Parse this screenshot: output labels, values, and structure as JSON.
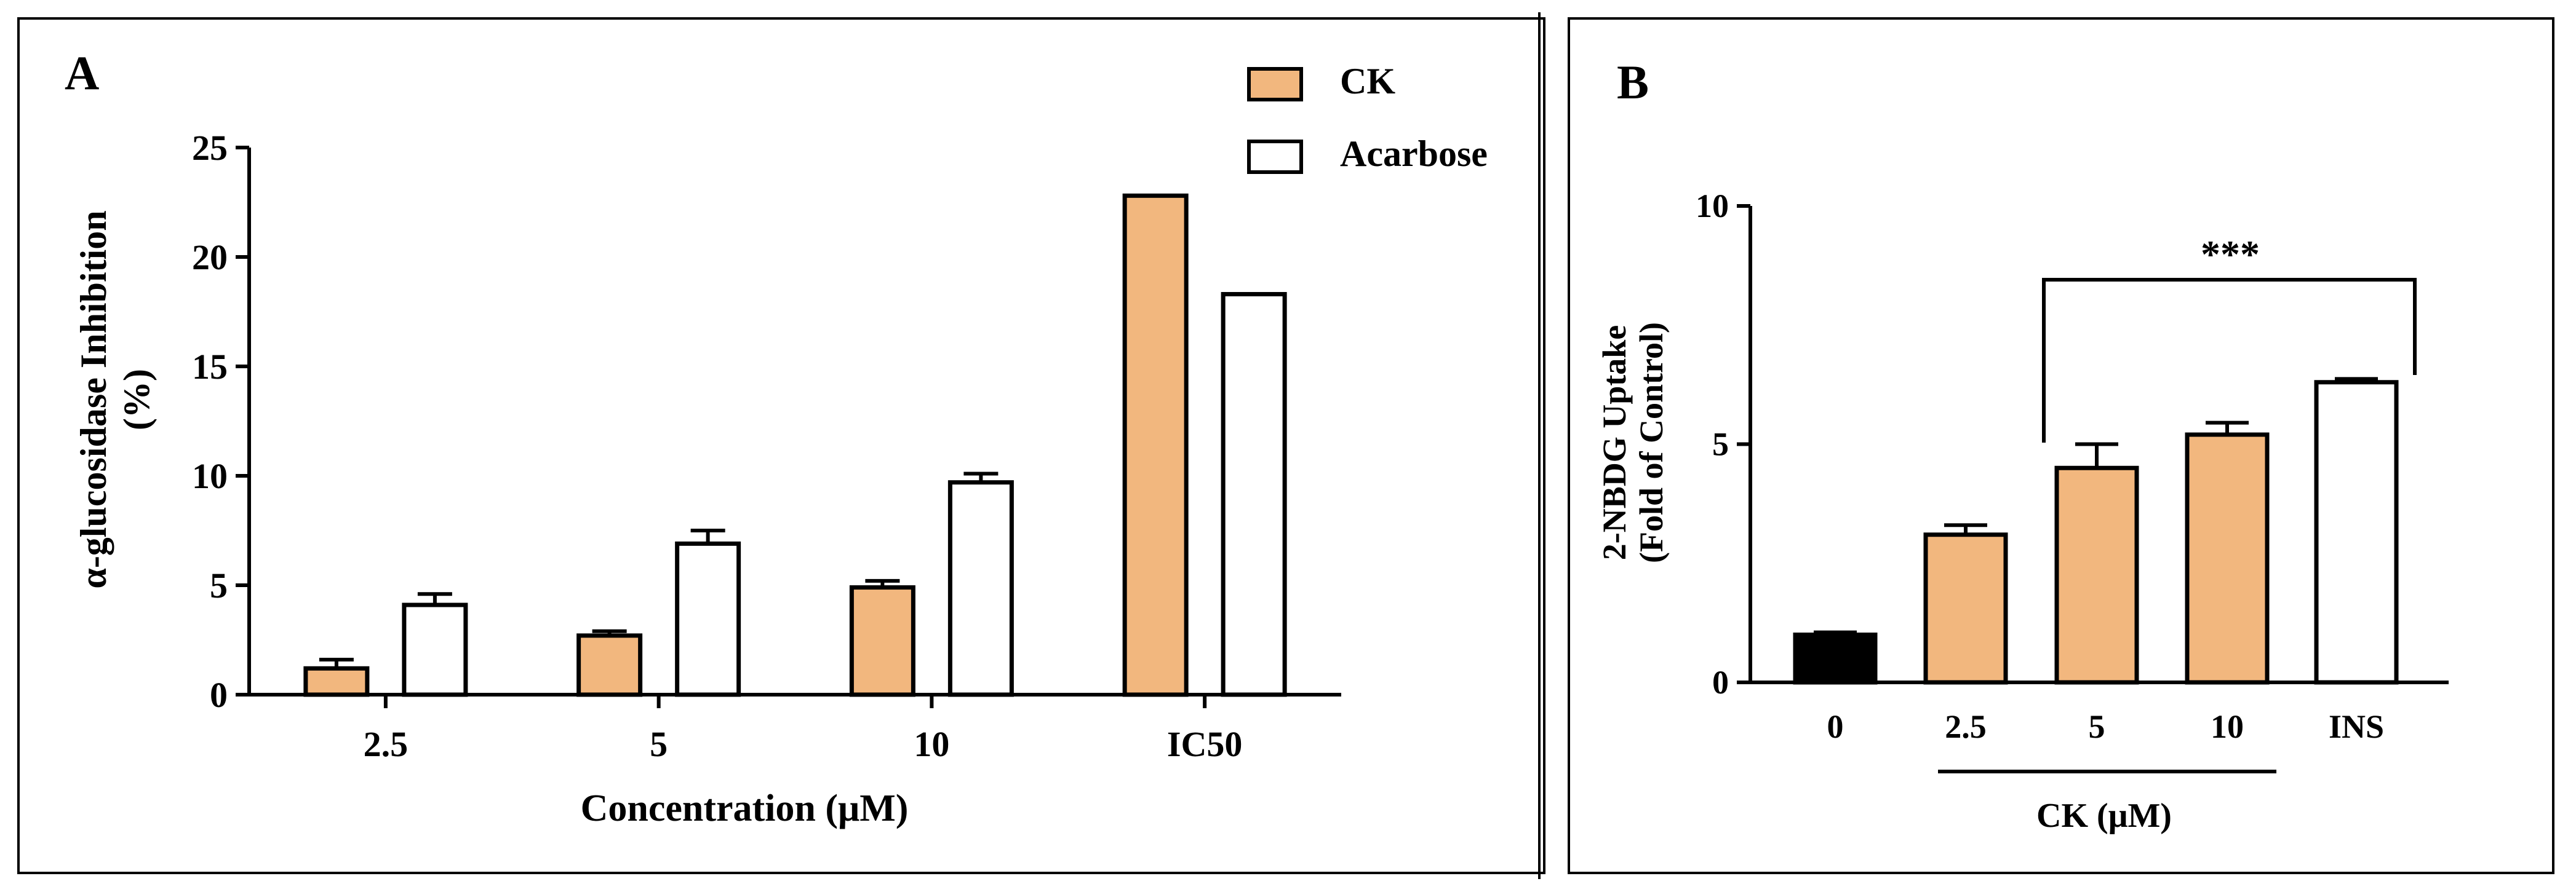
{
  "chart_data": [
    {
      "panel_label": "A",
      "type": "bar",
      "title": "",
      "categories": [
        "2.5",
        "5",
        "10",
        "IC50"
      ],
      "series": [
        {
          "name": "CK",
          "color": "#F2B77E",
          "values": [
            1.2,
            2.7,
            4.9,
            22.8
          ],
          "errors": [
            0.4,
            0.2,
            0.3,
            0.0
          ]
        },
        {
          "name": "Acarbose",
          "color": "#FFFFFF",
          "values": [
            4.1,
            6.9,
            9.7,
            18.3
          ],
          "errors": [
            0.5,
            0.6,
            0.4,
            0.0
          ]
        }
      ],
      "xlabel": "Concentration (μM)",
      "ylabel_lines": [
        "α-glucosidase Inhibition",
        "(%)"
      ],
      "ylim": [
        0,
        25
      ],
      "yticks": [
        "0",
        "5",
        "10",
        "15",
        "20",
        "25"
      ],
      "legend_position": "top-right",
      "grid": false
    },
    {
      "panel_label": "B",
      "type": "bar",
      "title": "",
      "categories": [
        "0",
        "2.5",
        "5",
        "10",
        "INS"
      ],
      "series": [
        {
          "name": "2-NBDG Uptake",
          "values": [
            1.0,
            3.1,
            4.5,
            5.2,
            6.3
          ],
          "errors": [
            0.05,
            0.2,
            0.5,
            0.25,
            0.07
          ],
          "colors": [
            "#000000",
            "#F2B77E",
            "#F2B77E",
            "#F2B77E",
            "#FFFFFF"
          ]
        }
      ],
      "group_label": "CK (μM)",
      "ylabel_lines": [
        "2-NBDG Uptake",
        "(Fold of Control)"
      ],
      "ylim": [
        0,
        10
      ],
      "yticks": [
        "0",
        "5",
        "10"
      ],
      "significance": {
        "label": "***",
        "from": "5",
        "to": "INS"
      },
      "grid": false
    }
  ]
}
